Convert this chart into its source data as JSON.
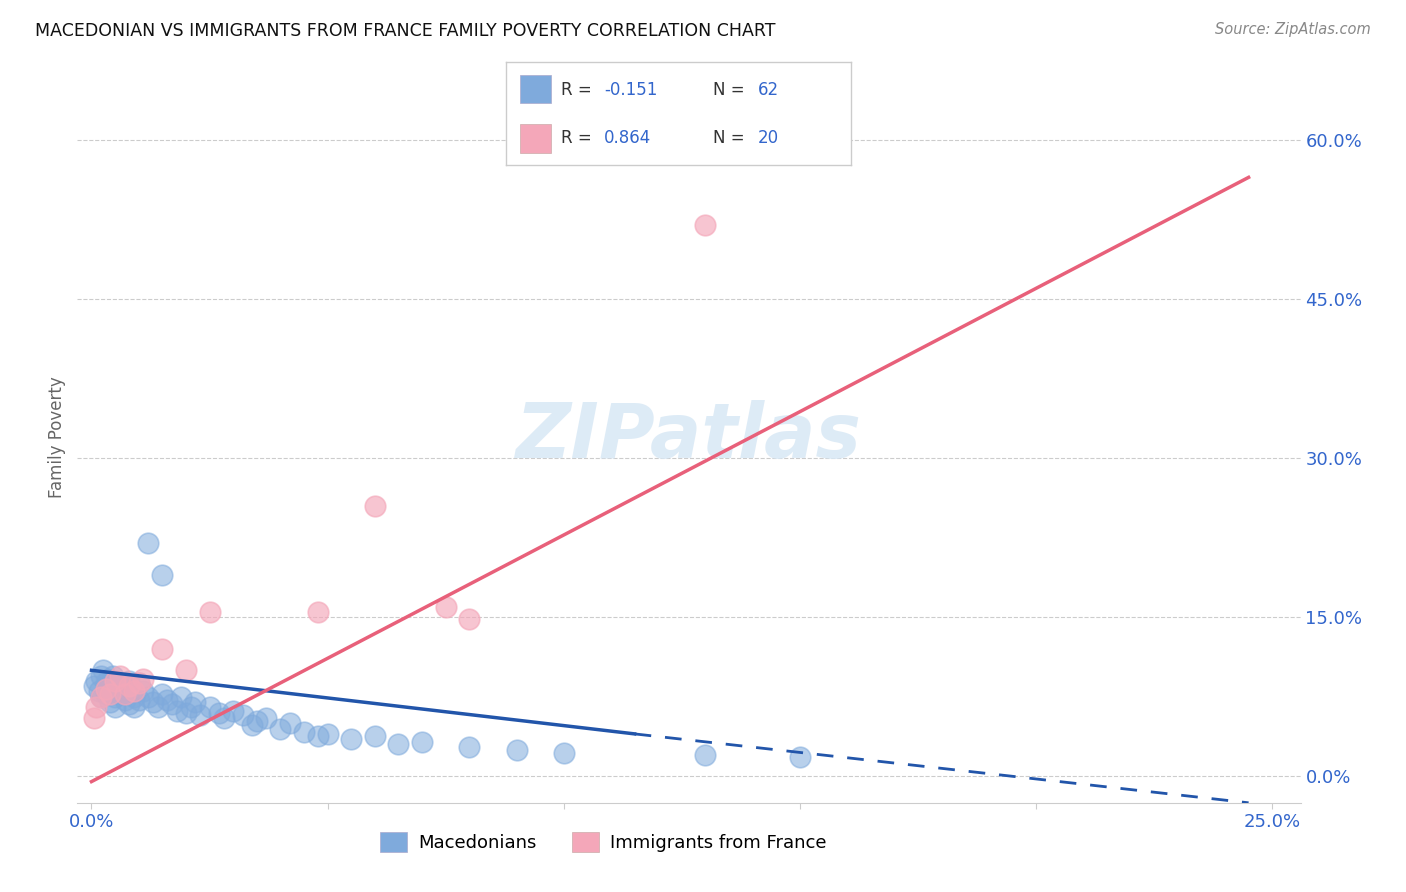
{
  "title": "MACEDONIAN VS IMMIGRANTS FROM FRANCE FAMILY POVERTY CORRELATION CHART",
  "source": "Source: ZipAtlas.com",
  "ylabel": "Family Poverty",
  "xlim": [
    -0.003,
    0.256
  ],
  "ylim": [
    -0.025,
    0.665
  ],
  "xtick_positions": [
    0.0,
    0.05,
    0.1,
    0.15,
    0.2,
    0.25
  ],
  "xtick_labels": [
    "0.0%",
    "",
    "",
    "",
    "",
    "25.0%"
  ],
  "ytick_positions": [
    0.0,
    0.15,
    0.3,
    0.45,
    0.6
  ],
  "ytick_labels": [
    "0.0%",
    "15.0%",
    "30.0%",
    "45.0%",
    "60.0%"
  ],
  "macedonian_color": "#7faadc",
  "france_color": "#f4a7b9",
  "macedonian_line_color": "#2255aa",
  "france_line_color": "#e8607a",
  "watermark": "ZIPatlas",
  "mac_x": [
    0.0005,
    0.001,
    0.0015,
    0.002,
    0.002,
    0.0025,
    0.003,
    0.003,
    0.0035,
    0.004,
    0.004,
    0.0045,
    0.005,
    0.005,
    0.005,
    0.006,
    0.006,
    0.007,
    0.007,
    0.008,
    0.008,
    0.009,
    0.009,
    0.01,
    0.01,
    0.011,
    0.012,
    0.013,
    0.014,
    0.015,
    0.016,
    0.017,
    0.018,
    0.019,
    0.02,
    0.021,
    0.022,
    0.023,
    0.025,
    0.027,
    0.028,
    0.03,
    0.032,
    0.034,
    0.035,
    0.037,
    0.04,
    0.042,
    0.045,
    0.048,
    0.05,
    0.055,
    0.06,
    0.065,
    0.07,
    0.08,
    0.09,
    0.1,
    0.13,
    0.15,
    0.012,
    0.015
  ],
  "mac_y": [
    0.085,
    0.09,
    0.08,
    0.095,
    0.075,
    0.1,
    0.088,
    0.078,
    0.092,
    0.082,
    0.07,
    0.095,
    0.085,
    0.075,
    0.065,
    0.088,
    0.078,
    0.082,
    0.072,
    0.09,
    0.068,
    0.075,
    0.065,
    0.088,
    0.072,
    0.08,
    0.075,
    0.07,
    0.065,
    0.078,
    0.072,
    0.068,
    0.062,
    0.075,
    0.06,
    0.065,
    0.07,
    0.058,
    0.065,
    0.06,
    0.055,
    0.062,
    0.058,
    0.048,
    0.052,
    0.055,
    0.045,
    0.05,
    0.042,
    0.038,
    0.04,
    0.035,
    0.038,
    0.03,
    0.032,
    0.028,
    0.025,
    0.022,
    0.02,
    0.018,
    0.22,
    0.19
  ],
  "fr_x": [
    0.0005,
    0.001,
    0.002,
    0.003,
    0.004,
    0.005,
    0.006,
    0.007,
    0.008,
    0.009,
    0.01,
    0.011,
    0.015,
    0.02,
    0.025,
    0.048,
    0.06,
    0.075,
    0.08,
    0.13
  ],
  "fr_y": [
    0.055,
    0.065,
    0.075,
    0.082,
    0.078,
    0.09,
    0.095,
    0.078,
    0.085,
    0.08,
    0.088,
    0.092,
    0.12,
    0.1,
    0.155,
    0.155,
    0.255,
    0.16,
    0.148,
    0.52
  ],
  "mac_line_x0": 0.0,
  "mac_line_x1": 0.115,
  "mac_line_dash_x0": 0.115,
  "mac_line_dash_x1": 0.245,
  "mac_line_y_at_0": 0.1,
  "mac_line_y_at_115": 0.04,
  "mac_line_y_at_245": -0.025,
  "fr_line_x0": 0.0,
  "fr_line_x1": 0.245,
  "fr_line_y_at_0": -0.005,
  "fr_line_y_at_245": 0.565
}
